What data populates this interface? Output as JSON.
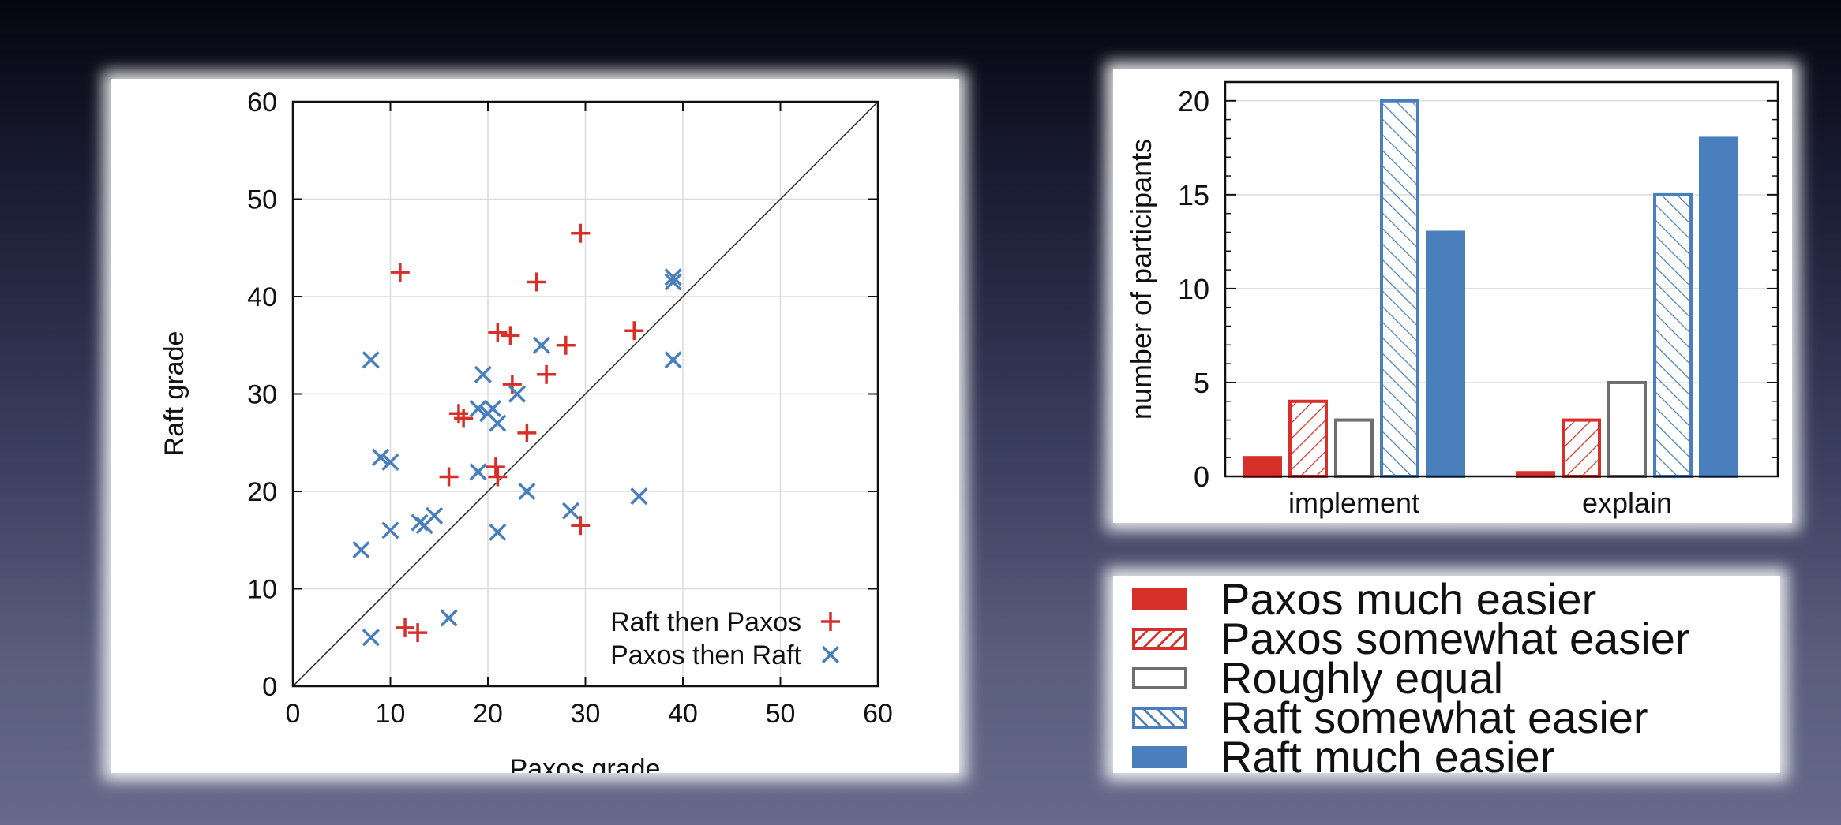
{
  "colors": {
    "paxos_red": "#d7302a",
    "raft_blue": "#4a7fbd",
    "equal_gray": "#6e6e6e",
    "grid": "#dcdcdc"
  },
  "chart_data": [
    {
      "type": "scatter",
      "xlabel": "Paxos grade",
      "ylabel": "Raft grade",
      "xlim": [
        0,
        60
      ],
      "ylim": [
        0,
        60
      ],
      "xticks": [
        0,
        10,
        20,
        30,
        40,
        50,
        60
      ],
      "yticks": [
        0,
        10,
        20,
        30,
        40,
        50,
        60
      ],
      "grid": true,
      "diagonal": true,
      "legend_position": "bottom-right",
      "series": [
        {
          "name": "Raft then Paxos",
          "marker": "plus",
          "color": "#d7302a",
          "points": [
            [
              11,
              42.5
            ],
            [
              29.5,
              46.5
            ],
            [
              25,
              41.5
            ],
            [
              21,
              36.3
            ],
            [
              22.3,
              36
            ],
            [
              28,
              35
            ],
            [
              35,
              36.5
            ],
            [
              26,
              32
            ],
            [
              22.5,
              31
            ],
            [
              17,
              28
            ],
            [
              17.5,
              27.5
            ],
            [
              24,
              26
            ],
            [
              16,
              21.5
            ],
            [
              20.8,
              22.5
            ],
            [
              21,
              21.5
            ],
            [
              29.5,
              16.5
            ],
            [
              11.5,
              6
            ],
            [
              12.8,
              5.5
            ]
          ]
        },
        {
          "name": "Paxos then Raft",
          "marker": "x",
          "color": "#4a7fbd",
          "points": [
            [
              8,
              33.5
            ],
            [
              9,
              23.5
            ],
            [
              10,
              23
            ],
            [
              10,
              16
            ],
            [
              7,
              14
            ],
            [
              13,
              16.8
            ],
            [
              13.5,
              16.5
            ],
            [
              14.5,
              17.5
            ],
            [
              16,
              7
            ],
            [
              8,
              5
            ],
            [
              19.5,
              32
            ],
            [
              25.5,
              35
            ],
            [
              23,
              30
            ],
            [
              19,
              28.5
            ],
            [
              20,
              28
            ],
            [
              20.5,
              28.5
            ],
            [
              21,
              27
            ],
            [
              19,
              22
            ],
            [
              24,
              20
            ],
            [
              21,
              15.8
            ],
            [
              28.5,
              18
            ],
            [
              35.5,
              19.5
            ],
            [
              39,
              42
            ],
            [
              39,
              41.5
            ],
            [
              39,
              33.5
            ]
          ]
        }
      ]
    },
    {
      "type": "bar",
      "categories": [
        "implement",
        "explain"
      ],
      "ylabel": "number of participants",
      "xlabel": "",
      "ylim": [
        0,
        21
      ],
      "yticks": [
        0,
        5,
        10,
        15,
        20
      ],
      "grid": true,
      "series": [
        {
          "name": "Paxos much easier",
          "style": "solid",
          "color": "#d7302a",
          "values": [
            1,
            0.2
          ]
        },
        {
          "name": "Paxos somewhat easier",
          "style": "hatch-right",
          "color": "#d7302a",
          "values": [
            4,
            3
          ]
        },
        {
          "name": "Roughly equal",
          "style": "outline",
          "color": "#6e6e6e",
          "values": [
            3,
            5
          ]
        },
        {
          "name": "Raft somewhat easier",
          "style": "hatch-left",
          "color": "#4a7fbd",
          "values": [
            20,
            15
          ]
        },
        {
          "name": "Raft much easier",
          "style": "solid",
          "color": "#4a7fbd",
          "values": [
            13,
            18
          ]
        }
      ]
    }
  ],
  "legend": [
    {
      "label": "Paxos much easier",
      "style": "solid",
      "color": "#d7302a"
    },
    {
      "label": "Paxos somewhat easier",
      "style": "hatch-right",
      "color": "#d7302a"
    },
    {
      "label": "Roughly equal",
      "style": "outline",
      "color": "#6e6e6e"
    },
    {
      "label": "Raft somewhat easier",
      "style": "hatch-left",
      "color": "#4a7fbd"
    },
    {
      "label": "Raft much easier",
      "style": "solid",
      "color": "#4a7fbd"
    }
  ]
}
